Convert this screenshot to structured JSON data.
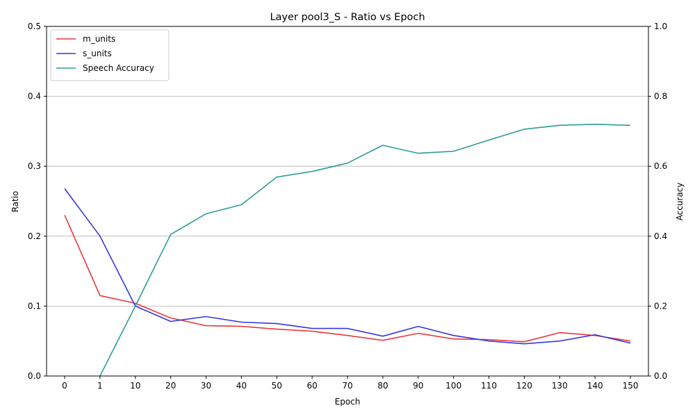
{
  "chart_data": {
    "type": "line",
    "title": "Layer pool3_S - Ratio vs Epoch",
    "xlabel": "Epoch",
    "ylabel": "Ratio",
    "y2label": "Accuracy",
    "categories": [
      "0",
      "1",
      "10",
      "20",
      "30",
      "40",
      "50",
      "60",
      "70",
      "80",
      "90",
      "100",
      "110",
      "120",
      "130",
      "140",
      "150"
    ],
    "ylim": [
      0,
      0.5
    ],
    "yticks": [
      "0.0",
      "0.1",
      "0.2",
      "0.3",
      "0.4",
      "0.5"
    ],
    "y2lim": [
      0,
      1.0
    ],
    "y2ticks": [
      "0.0",
      "0.2",
      "0.4",
      "0.6",
      "0.8",
      "1.0"
    ],
    "grid": "horizontal",
    "legend_position": "top-left",
    "series": [
      {
        "name": "m_units",
        "axis": "left",
        "color": "#e8383b",
        "values": [
          0.23,
          0.115,
          0.104,
          0.083,
          0.072,
          0.071,
          0.067,
          0.064,
          0.058,
          0.051,
          0.061,
          0.053,
          0.052,
          0.049,
          0.062,
          0.058,
          0.05
        ]
      },
      {
        "name": "s_units",
        "axis": "left",
        "color": "#3535e0",
        "values": [
          0.268,
          0.2,
          0.1,
          0.078,
          0.085,
          0.077,
          0.075,
          0.068,
          0.068,
          0.057,
          0.071,
          0.058,
          0.05,
          0.046,
          0.05,
          0.059,
          0.047
        ]
      },
      {
        "name": "Speech Accuracy",
        "axis": "right",
        "color": "#2e9b96",
        "x_start_index": 1,
        "values": [
          null,
          0.0,
          0.2,
          0.405,
          0.464,
          0.49,
          0.569,
          0.585,
          0.609,
          0.66,
          0.637,
          0.643,
          0.675,
          0.706,
          0.717,
          0.72,
          0.717
        ]
      }
    ]
  }
}
